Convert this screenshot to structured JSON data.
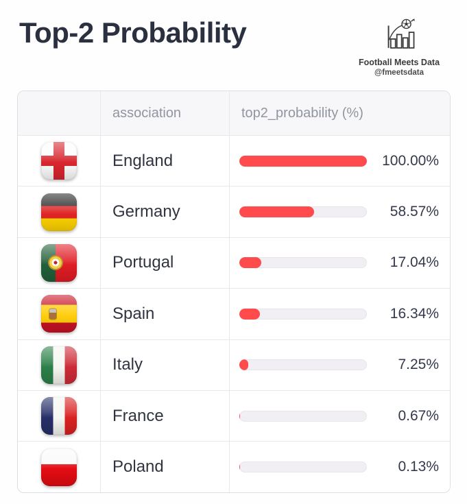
{
  "accent_color": "#ff4b4b",
  "page": {
    "title": "Top-2 Probability"
  },
  "logo": {
    "name": "Football Meets Data",
    "handle": "@fmeetsdata"
  },
  "table": {
    "columns": [
      "",
      "association",
      "top2_probability (%)"
    ],
    "rows": [
      {
        "flag": "england",
        "association": "England",
        "value": 100.0,
        "value_label": "100.00%"
      },
      {
        "flag": "germany",
        "association": "Germany",
        "value": 58.57,
        "value_label": "58.57%"
      },
      {
        "flag": "portugal",
        "association": "Portugal",
        "value": 17.04,
        "value_label": "17.04%"
      },
      {
        "flag": "spain",
        "association": "Spain",
        "value": 16.34,
        "value_label": "16.34%"
      },
      {
        "flag": "italy",
        "association": "Italy",
        "value": 7.25,
        "value_label": "7.25%"
      },
      {
        "flag": "france",
        "association": "France",
        "value": 0.67,
        "value_label": "0.67%"
      },
      {
        "flag": "poland",
        "association": "Poland",
        "value": 0.13,
        "value_label": "0.13%"
      }
    ]
  },
  "chart_data": {
    "type": "bar",
    "orientation": "horizontal",
    "title": "Top-2 Probability",
    "xlabel": "association",
    "ylabel": "top2_probability (%)",
    "categories": [
      "England",
      "Germany",
      "Portugal",
      "Spain",
      "Italy",
      "France",
      "Poland"
    ],
    "values": [
      100.0,
      58.57,
      17.04,
      16.34,
      7.25,
      0.67,
      0.13
    ],
    "value_labels": [
      "100.00%",
      "58.57%",
      "17.04%",
      "16.34%",
      "7.25%",
      "0.67%",
      "0.13%"
    ],
    "xlim": [
      0,
      100
    ],
    "grid": false,
    "legend": false,
    "bar_color": "#ff4b4b",
    "track_color": "#f1eff3"
  }
}
